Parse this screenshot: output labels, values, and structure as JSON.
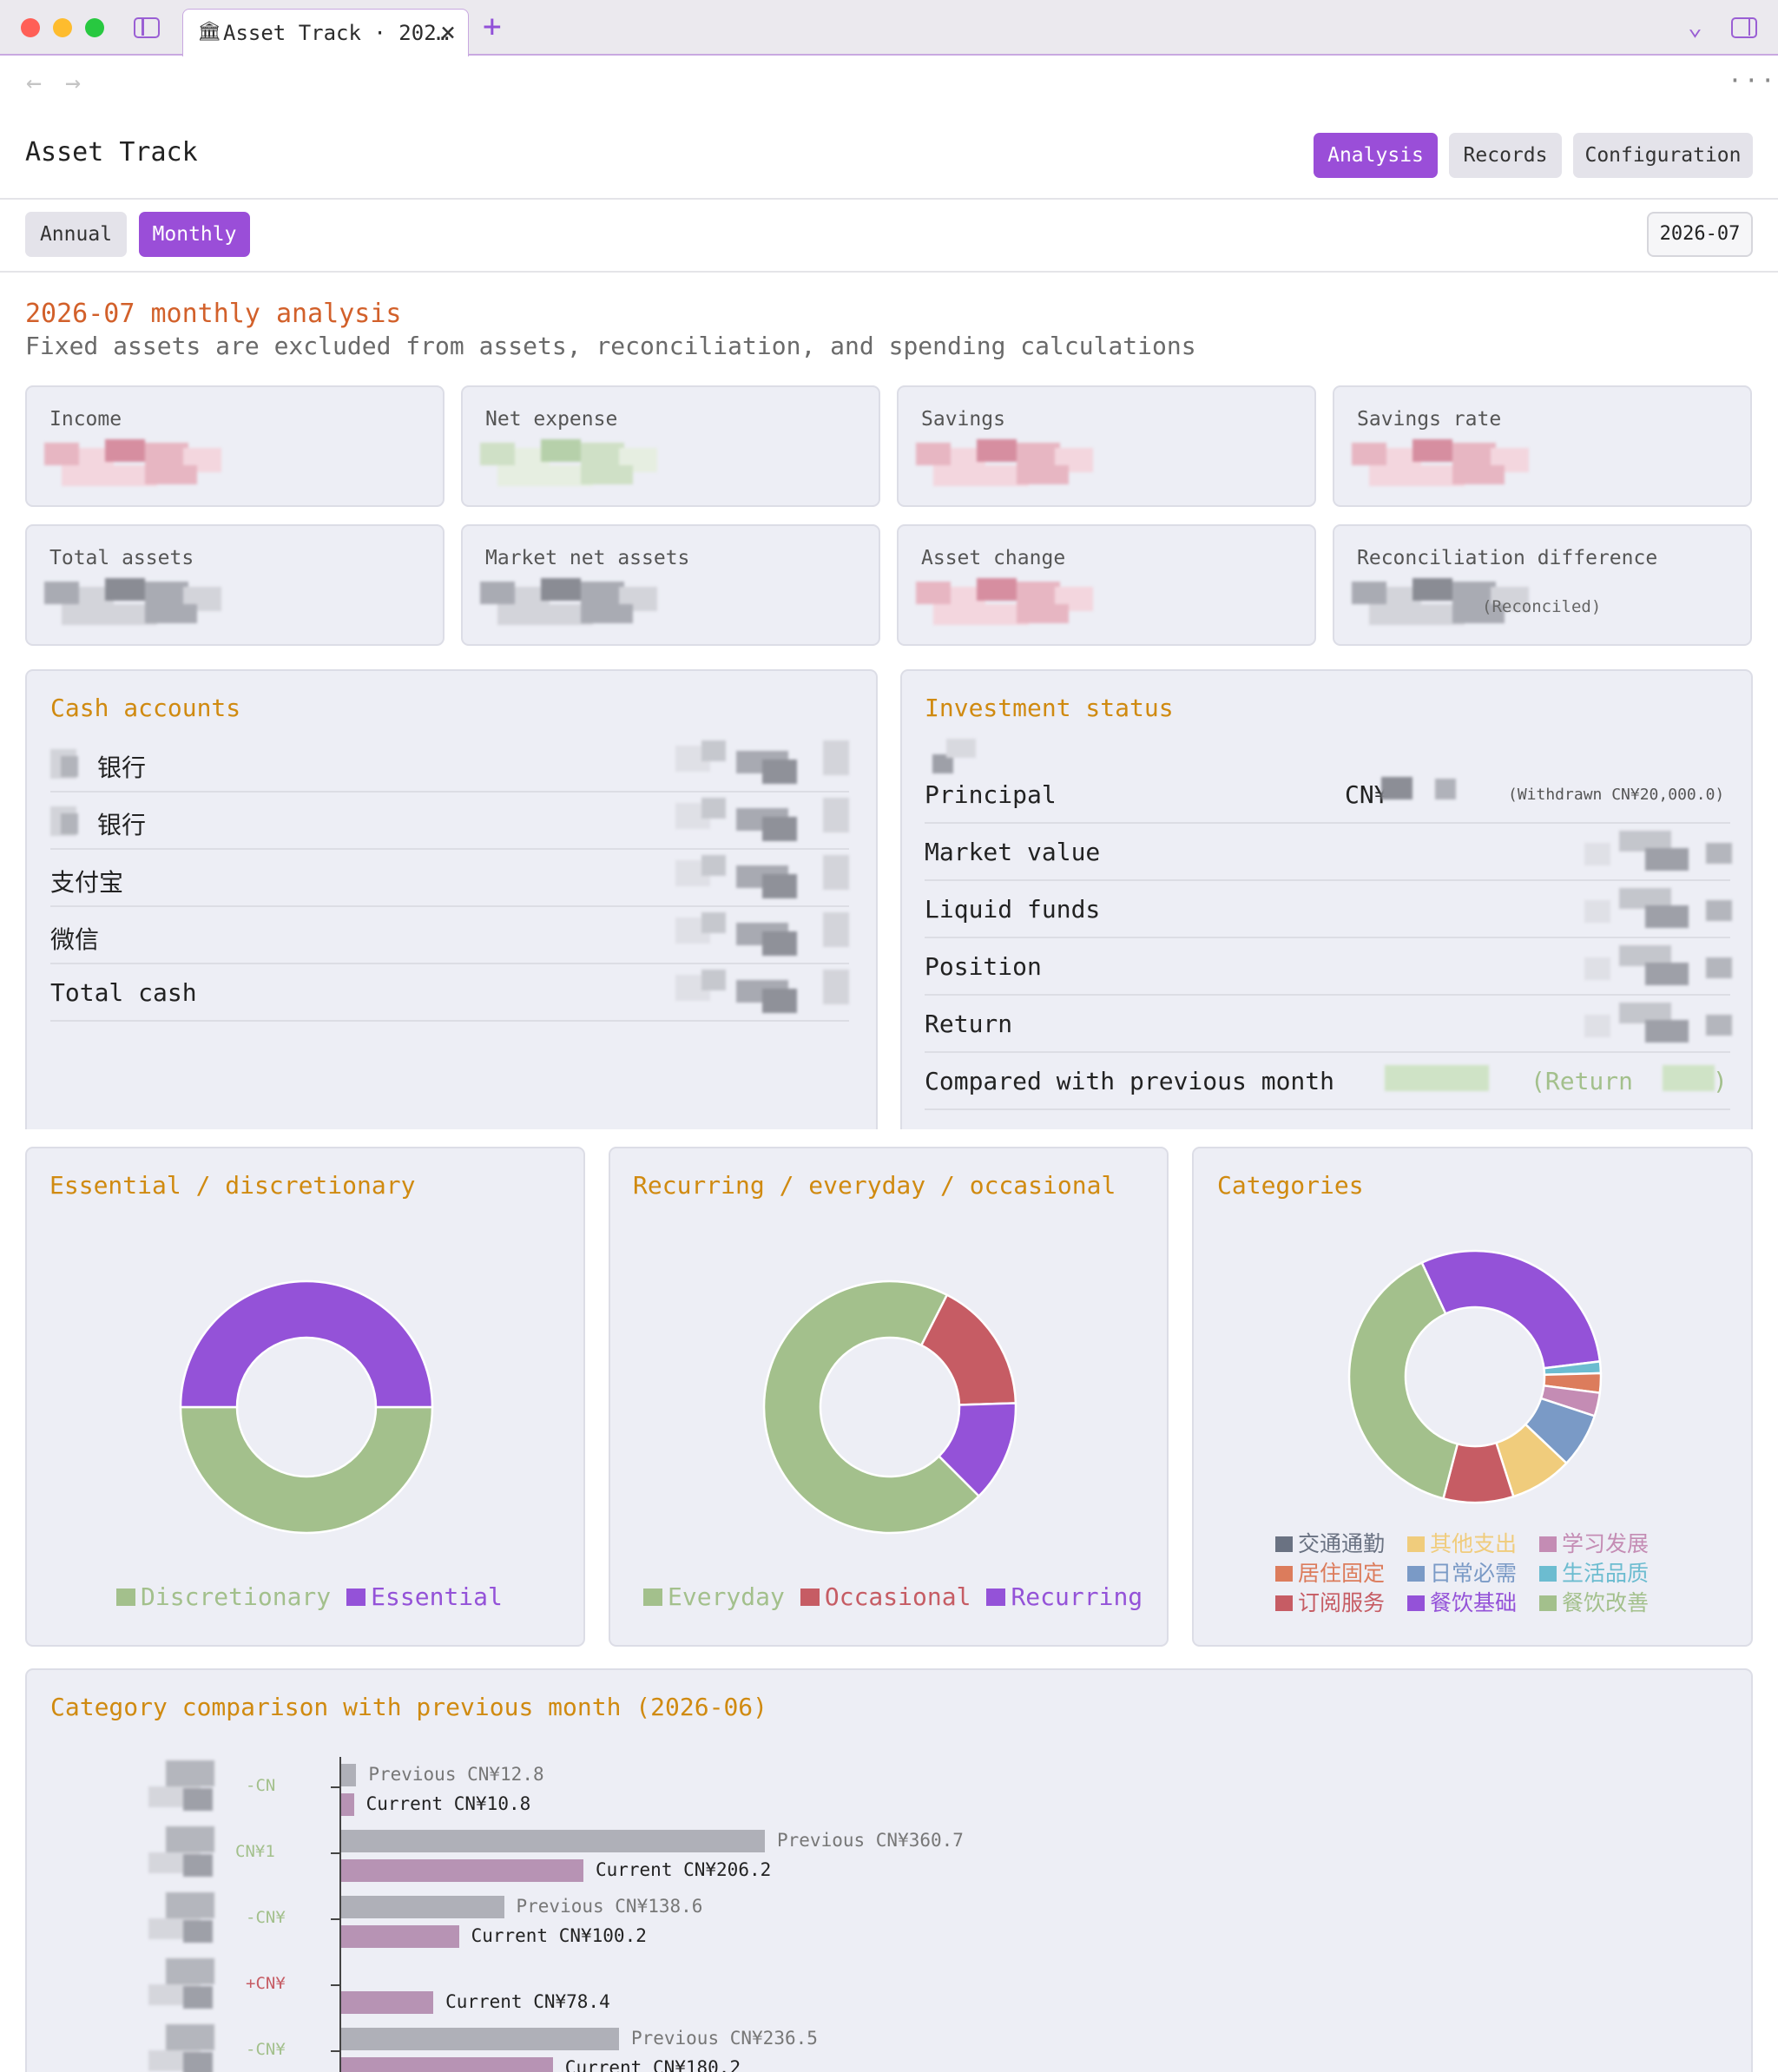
{
  "window": {
    "tab_title": "Asset Track · 202…",
    "tab_icon": "🏛",
    "new_tab": "+",
    "close": "×"
  },
  "nav": {
    "back": "←",
    "forward": "→",
    "more": "···"
  },
  "header": {
    "title": "Asset Track",
    "buttons": [
      "Analysis",
      "Records",
      "Configuration"
    ],
    "active_button": "Analysis"
  },
  "period": {
    "tabs": [
      "Annual",
      "Monthly"
    ],
    "active": "Monthly",
    "date": "2026-07"
  },
  "analysis": {
    "heading": "2026-07 monthly analysis",
    "note": "Fixed assets are excluded from assets, reconciliation, and spending calculations"
  },
  "stats": [
    {
      "label": "Income",
      "tone": "red"
    },
    {
      "label": "Net expense",
      "tone": "green"
    },
    {
      "label": "Savings",
      "tone": "red"
    },
    {
      "label": "Savings rate",
      "tone": "red"
    },
    {
      "label": "Total assets",
      "tone": "gray"
    },
    {
      "label": "Market net assets",
      "tone": "gray"
    },
    {
      "label": "Asset change",
      "tone": "red"
    },
    {
      "label": "Reconciliation difference",
      "tone": "gray",
      "note": "(Reconciled)"
    }
  ],
  "cash": {
    "title": "Cash accounts",
    "rows": [
      "银行",
      "银行",
      "支付宝",
      "微信",
      "Total cash"
    ]
  },
  "investment": {
    "title": "Investment status",
    "principal_label": "Principal",
    "principal_prefix": "CN¥",
    "withdrawn_note": "(Withdrawn CN¥20,000.0)",
    "rows": [
      "Market value",
      "Liquid funds",
      "Position",
      "Return",
      "Compared with previous month"
    ],
    "return_note_open": "(Return",
    "return_note_close": ")"
  },
  "colors": {
    "accent": "#9a4ed8",
    "heading_orange": "#d2602a",
    "section_gold": "#d08a10",
    "green": "#a3c08c",
    "purple": "#9452d8",
    "red": "#c65c64"
  },
  "charts": {
    "essential": {
      "title": "Essential / discretionary",
      "legend": [
        {
          "name": "Discretionary",
          "color": "#a3c08c"
        },
        {
          "name": "Essential",
          "color": "#9452d8"
        }
      ]
    },
    "recurring": {
      "title": "Recurring / everyday / occasional",
      "legend": [
        {
          "name": "Everyday",
          "color": "#a3c08c"
        },
        {
          "name": "Occasional",
          "color": "#c65c64"
        },
        {
          "name": "Recurring",
          "color": "#9452d8"
        }
      ]
    },
    "categories": {
      "title": "Categories",
      "legend": [
        {
          "name": "交通通勤",
          "color": "#6a7282"
        },
        {
          "name": "其他支出",
          "color": "#f0cc7c"
        },
        {
          "name": "学习发展",
          "color": "#c48cb4"
        },
        {
          "name": "居住固定",
          "color": "#dc7c5c"
        },
        {
          "name": "日常必需",
          "color": "#7a9ac6"
        },
        {
          "name": "生活品质",
          "color": "#6cbcd0"
        },
        {
          "name": "订阅服务",
          "color": "#c65c64"
        },
        {
          "name": "餐饮基础",
          "color": "#9452d8"
        },
        {
          "name": "餐饮改善",
          "color": "#a3c08c"
        }
      ]
    },
    "comparison": {
      "title": "Category comparison with previous month (2026-06)",
      "rows": [
        {
          "delta": "-CN",
          "previous": "Previous CN¥12.8",
          "current": "Current CN¥10.8"
        },
        {
          "delta": "CN¥1",
          "previous": "Previous CN¥360.7",
          "current": "Current CN¥206.2"
        },
        {
          "delta": "-CN¥",
          "previous": "Previous CN¥138.6",
          "current": "Current CN¥100.2"
        },
        {
          "delta": "+CN¥",
          "previous": "",
          "current": "Current CN¥78.4"
        },
        {
          "delta": "-CN¥",
          "previous": "Previous CN¥236.5",
          "current": "Current CN¥180.2"
        }
      ]
    }
  },
  "chart_data": [
    {
      "type": "pie",
      "title": "Essential / discretionary",
      "labels": [
        "Discretionary",
        "Essential"
      ],
      "values": [
        50,
        50
      ]
    },
    {
      "type": "pie",
      "title": "Recurring / everyday / occasional",
      "labels": [
        "Everyday",
        "Occasional",
        "Recurring"
      ],
      "values": [
        70,
        17,
        13
      ]
    },
    {
      "type": "pie",
      "title": "Categories",
      "labels": [
        "餐饮基础",
        "生活品质",
        "居住固定",
        "学习发展",
        "日常必需",
        "其他支出",
        "订阅服务",
        "餐饮改善",
        "交通通勤"
      ],
      "values": [
        30,
        1.5,
        2.5,
        3,
        7,
        8,
        9,
        39,
        0
      ]
    },
    {
      "type": "bar",
      "title": "Category comparison with previous month (2026-06)",
      "categories": [
        "1",
        "2",
        "3",
        "4",
        "5"
      ],
      "series": [
        {
          "name": "Previous",
          "values": [
            12.8,
            360.7,
            138.6,
            0,
            236.5
          ]
        },
        {
          "name": "Current",
          "values": [
            10.8,
            206.2,
            100.2,
            78.4,
            180.2
          ]
        }
      ]
    }
  ]
}
